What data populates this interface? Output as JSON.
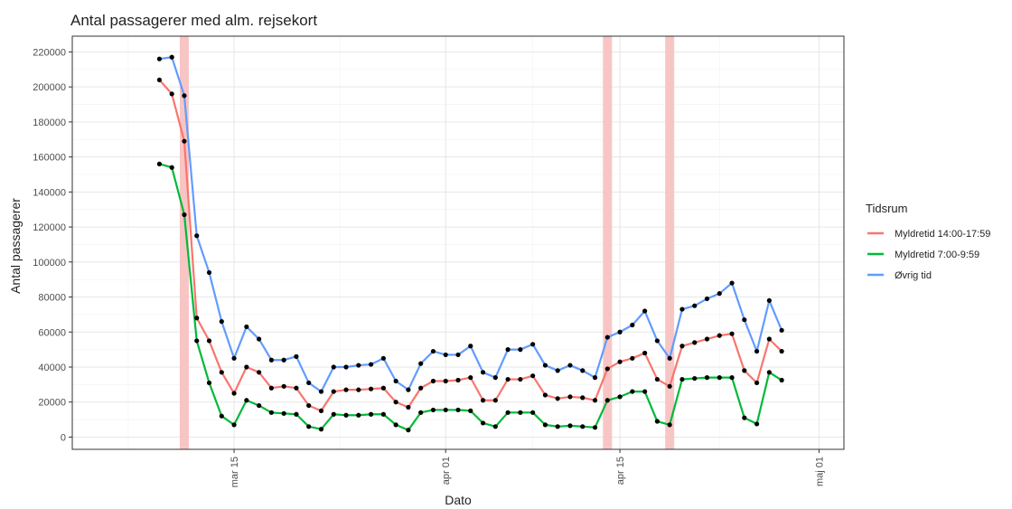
{
  "chart_data": {
    "type": "line",
    "title": "Antal passagerer med alm. rejsekort",
    "xlabel": "Dato",
    "ylabel": "Antal passagerer",
    "ylim": [
      -7000,
      229000
    ],
    "xlim": [
      "2020-03-02",
      "2020-05-03"
    ],
    "grid": true,
    "legend_position": "right",
    "legend_title": "Tidsrum",
    "y_ticks": [
      0,
      20000,
      40000,
      60000,
      80000,
      100000,
      120000,
      140000,
      160000,
      180000,
      200000,
      220000
    ],
    "x_ticks": [
      {
        "date": "2020-03-15",
        "label": "mar 15"
      },
      {
        "date": "2020-04-01",
        "label": "apr 01"
      },
      {
        "date": "2020-04-15",
        "label": "apr 15"
      },
      {
        "date": "2020-05-01",
        "label": "maj 01"
      }
    ],
    "highlight_dates": [
      "2020-03-11",
      "2020-04-14",
      "2020-04-19"
    ],
    "highlight_color": "#f8c2c2",
    "point_color": "#000000",
    "dates": [
      "2020-03-09",
      "2020-03-10",
      "2020-03-11",
      "2020-03-12",
      "2020-03-13",
      "2020-03-14",
      "2020-03-15",
      "2020-03-16",
      "2020-03-17",
      "2020-03-18",
      "2020-03-19",
      "2020-03-20",
      "2020-03-21",
      "2020-03-22",
      "2020-03-23",
      "2020-03-24",
      "2020-03-25",
      "2020-03-26",
      "2020-03-27",
      "2020-03-28",
      "2020-03-29",
      "2020-03-30",
      "2020-03-31",
      "2020-04-01",
      "2020-04-02",
      "2020-04-03",
      "2020-04-04",
      "2020-04-05",
      "2020-04-06",
      "2020-04-07",
      "2020-04-08",
      "2020-04-09",
      "2020-04-10",
      "2020-04-11",
      "2020-04-12",
      "2020-04-13",
      "2020-04-14",
      "2020-04-15",
      "2020-04-16",
      "2020-04-17",
      "2020-04-18",
      "2020-04-19",
      "2020-04-20",
      "2020-04-21",
      "2020-04-22",
      "2020-04-23",
      "2020-04-24",
      "2020-04-25",
      "2020-04-26",
      "2020-04-27",
      "2020-04-28"
    ],
    "series": [
      {
        "name": "Myldretid 14:00-17:59",
        "color": "#f8766d",
        "values": [
          204000,
          196000,
          169000,
          68000,
          55000,
          37000,
          25000,
          40000,
          37000,
          28000,
          29000,
          28000,
          18000,
          15000,
          26000,
          27000,
          27000,
          27500,
          28000,
          20000,
          17000,
          28000,
          32000,
          32000,
          32500,
          34000,
          21000,
          21000,
          33000,
          33000,
          35000,
          24000,
          22000,
          23000,
          22500,
          21000,
          39000,
          43000,
          45000,
          48000,
          33000,
          29000,
          52000,
          54000,
          56000,
          58000,
          59000,
          38000,
          31000,
          56000,
          49000
        ]
      },
      {
        "name": "Myldretid 7:00-9:59",
        "color": "#00ba38",
        "values": [
          156000,
          154000,
          127000,
          55000,
          31000,
          12000,
          7000,
          21000,
          18000,
          14000,
          13500,
          13000,
          6000,
          4500,
          13000,
          12500,
          12500,
          13000,
          13000,
          7000,
          4000,
          14000,
          15500,
          15500,
          15500,
          15000,
          8000,
          6000,
          14000,
          14000,
          14000,
          7000,
          6000,
          6500,
          6000,
          5500,
          21000,
          23000,
          26000,
          26000,
          9000,
          7000,
          33000,
          33500,
          34000,
          34000,
          34000,
          11000,
          7500,
          37000,
          32500
        ]
      },
      {
        "name": "Øvrig tid",
        "color": "#619cff",
        "values": [
          216000,
          217000,
          195000,
          115000,
          94000,
          66000,
          45000,
          63000,
          56000,
          44000,
          44000,
          46000,
          31000,
          26000,
          40000,
          40000,
          41000,
          41500,
          45000,
          32000,
          27000,
          42000,
          49000,
          47000,
          47000,
          52000,
          37000,
          34000,
          50000,
          50000,
          53000,
          41000,
          38000,
          41000,
          38000,
          34000,
          57000,
          60000,
          64000,
          72000,
          55000,
          45000,
          73000,
          75000,
          79000,
          82000,
          88000,
          67000,
          49000,
          78000,
          61000
        ]
      }
    ]
  }
}
